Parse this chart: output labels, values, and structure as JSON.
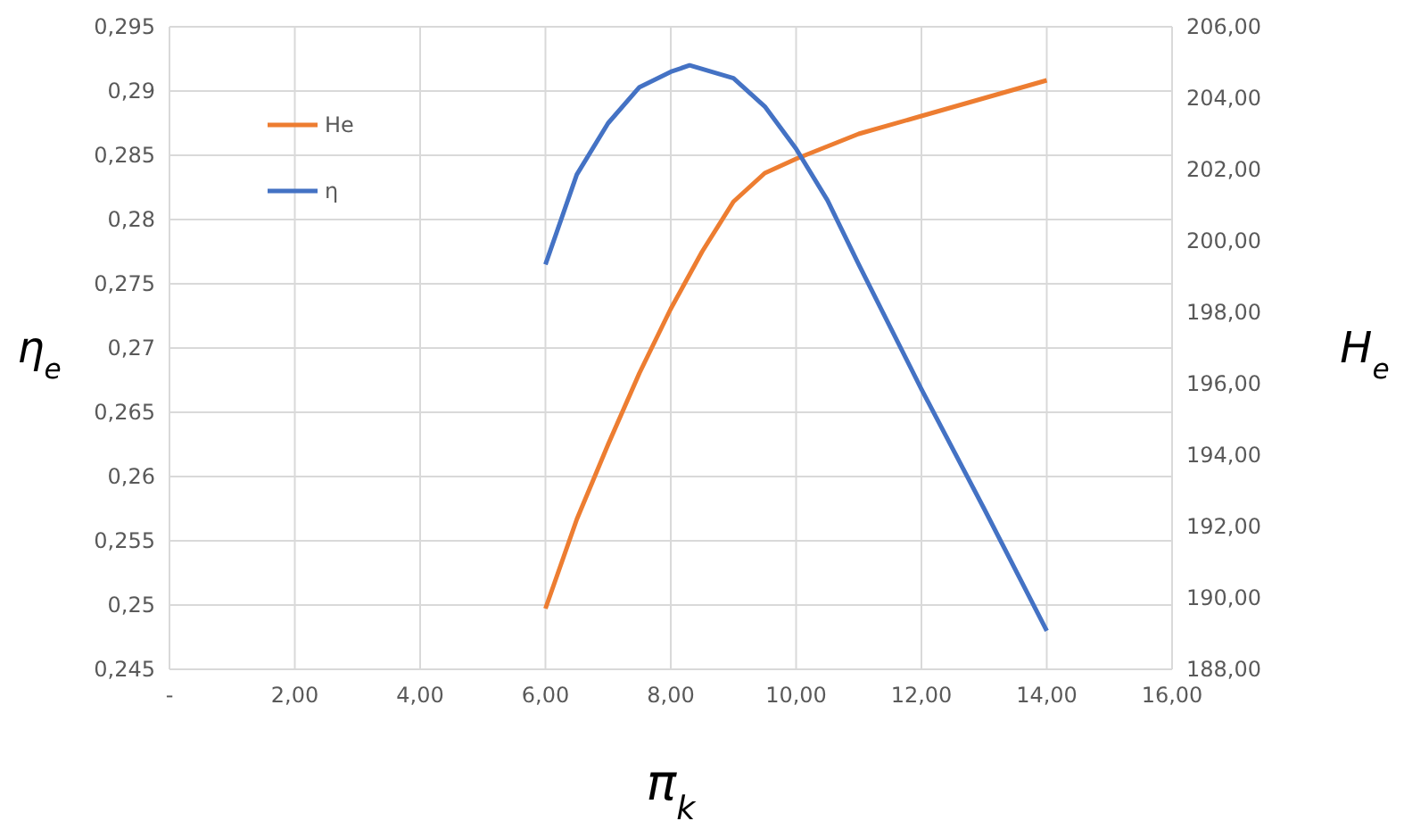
{
  "chart_data": {
    "type": "line",
    "xlabel": "π$_{k}$",
    "ylabel": "η$_{e}$",
    "y2label": "H$_{e}$",
    "xlim": [
      0,
      16
    ],
    "xticks": [
      {
        "value": 0,
        "label": "-"
      },
      {
        "value": 2,
        "label": "2,00"
      },
      {
        "value": 4,
        "label": "4,00"
      },
      {
        "value": 6,
        "label": "6,00"
      },
      {
        "value": 8,
        "label": "8,00"
      },
      {
        "value": 10,
        "label": "10,00"
      },
      {
        "value": 12,
        "label": "12,00"
      },
      {
        "value": 14,
        "label": "14,00"
      },
      {
        "value": 16,
        "label": "16,00"
      }
    ],
    "ylim": [
      0.245,
      0.295
    ],
    "yticks": [
      {
        "value": 0.245,
        "label": "0,245"
      },
      {
        "value": 0.25,
        "label": "0,25"
      },
      {
        "value": 0.255,
        "label": "0,255"
      },
      {
        "value": 0.26,
        "label": "0,26"
      },
      {
        "value": 0.265,
        "label": "0,265"
      },
      {
        "value": 0.27,
        "label": "0,27"
      },
      {
        "value": 0.275,
        "label": "0,275"
      },
      {
        "value": 0.28,
        "label": "0,28"
      },
      {
        "value": 0.285,
        "label": "0,285"
      },
      {
        "value": 0.29,
        "label": "0,29"
      },
      {
        "value": 0.295,
        "label": "0,295"
      }
    ],
    "y2lim": [
      188,
      206
    ],
    "y2ticks": [
      {
        "value": 188,
        "label": "188,00"
      },
      {
        "value": 190,
        "label": "190,00"
      },
      {
        "value": 192,
        "label": "192,00"
      },
      {
        "value": 194,
        "label": "194,00"
      },
      {
        "value": 196,
        "label": "196,00"
      },
      {
        "value": 198,
        "label": "198,00"
      },
      {
        "value": 200,
        "label": "200,00"
      },
      {
        "value": 202,
        "label": "202,00"
      },
      {
        "value": 204,
        "label": "204,00"
      },
      {
        "value": 206,
        "label": "206,00"
      }
    ],
    "grid": true,
    "legend": "top left",
    "marker": "none",
    "series": [
      {
        "name": "He",
        "color": "#ed7d31",
        "axis": "y2",
        "x": [
          6,
          6.5,
          7,
          7.5,
          8,
          8.5,
          9,
          9.5,
          10,
          11,
          12,
          13,
          14
        ],
        "values": [
          189.7,
          192.2,
          194.3,
          196.3,
          198.1,
          199.7,
          201.1,
          201.9,
          202.3,
          203,
          203.5,
          204,
          204.5
        ]
      },
      {
        "name": "η",
        "color": "#4472c4",
        "x": [
          6,
          6.5,
          7,
          7.5,
          8,
          8.3,
          9,
          9.5,
          10,
          10.5,
          11,
          12,
          13,
          14
        ],
        "values": [
          0.2765,
          0.2835,
          0.2875,
          0.2903,
          0.2915,
          0.292,
          0.291,
          0.2888,
          0.2855,
          0.2815,
          0.2765,
          0.2668,
          0.2575,
          0.248
        ]
      }
    ]
  }
}
